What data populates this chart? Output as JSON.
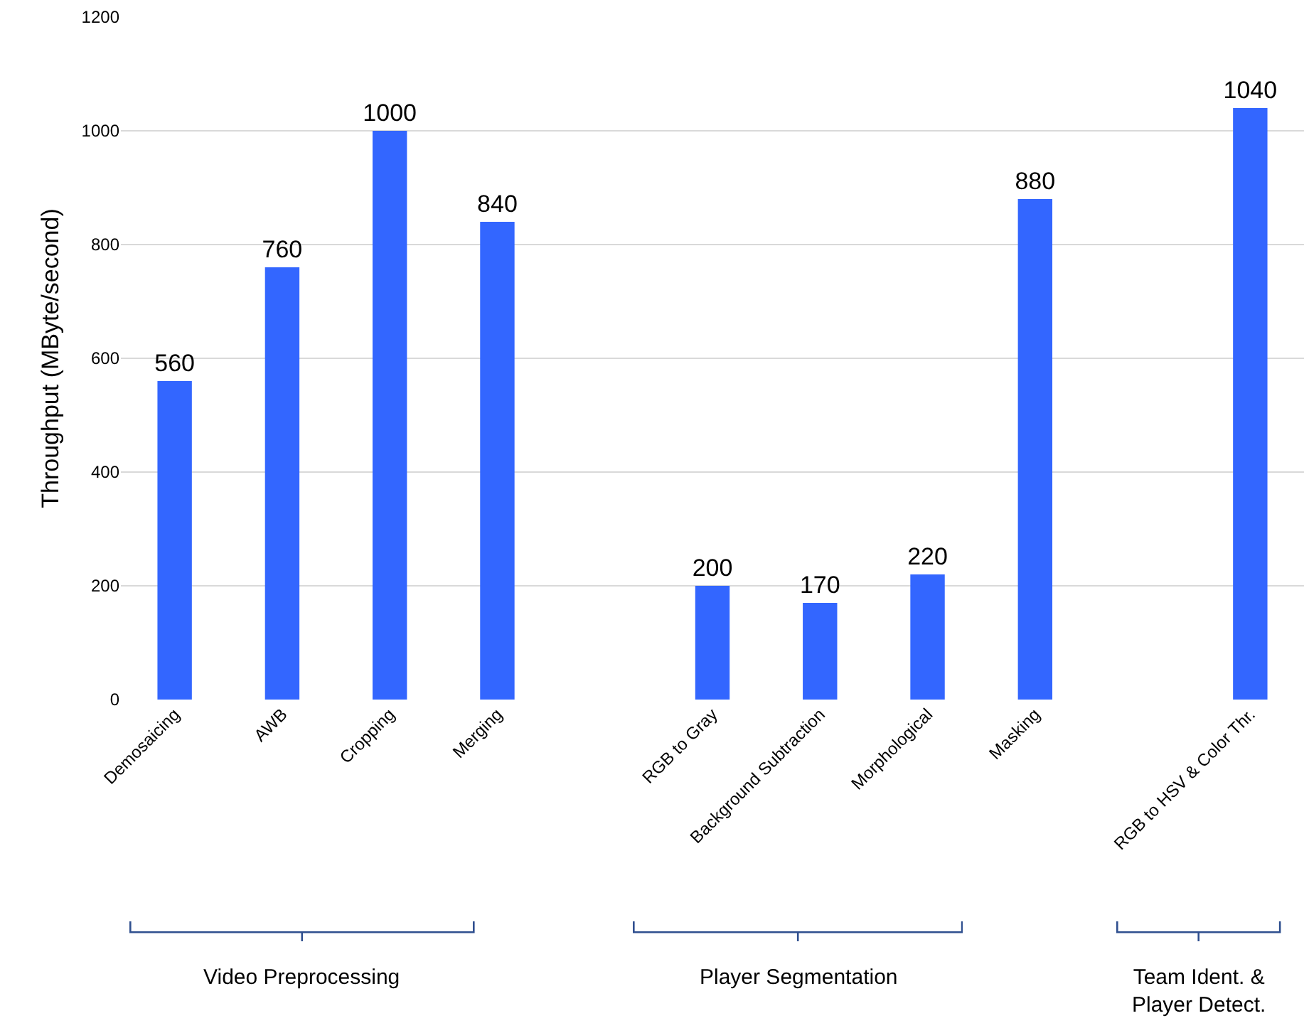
{
  "chart_data": {
    "type": "bar",
    "ylabel": "Throughput (MByte/second)",
    "categories": [
      "Demosaicing",
      "AWB",
      "Cropping",
      "Merging",
      null,
      "RGB to Gray",
      "Background Subtraction",
      "Morphological",
      "Masking",
      null,
      "RGB to HSV & Color Thr."
    ],
    "values": [
      560,
      760,
      1000,
      840,
      null,
      200,
      170,
      220,
      880,
      null,
      1040
    ],
    "color": "#3366ff",
    "data_labels": true,
    "ylim": [
      0,
      1200
    ],
    "yticks": [
      0,
      200,
      400,
      600,
      800,
      1000,
      1200
    ],
    "grid": "y",
    "annotations": [
      "Video Preprocessing",
      "Player Segmentation",
      "Team Ident. &\nPlayer Detect."
    ]
  }
}
